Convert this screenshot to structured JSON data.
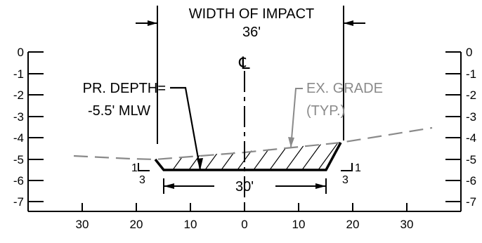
{
  "title": "WIDTH OF IMPACT",
  "impact_width": "36'",
  "centerline_symbol": "℄",
  "depth_label_line1": "PR. DEPTH=",
  "depth_label_line2": "-5.5' MLW",
  "grade_label_line1": "EX. GRADE",
  "grade_label_line2": "(TYP.)",
  "bottom_width": "30'",
  "slope_left": {
    "rise": "1",
    "run": "3"
  },
  "slope_right": {
    "rise": "1",
    "run": "3"
  },
  "left_axis_ticks": [
    "0",
    "-1",
    "-2",
    "-3",
    "-4",
    "-5",
    "-6",
    "-7"
  ],
  "right_axis_ticks": [
    "0",
    "-1",
    "-2",
    "-3",
    "-4",
    "-5",
    "-6",
    "-7"
  ],
  "x_axis_ticks": [
    "30",
    "20",
    "10",
    "0",
    "10",
    "20",
    "30"
  ],
  "colors": {
    "line": "#000000",
    "grade": "#8a8a8a"
  }
}
